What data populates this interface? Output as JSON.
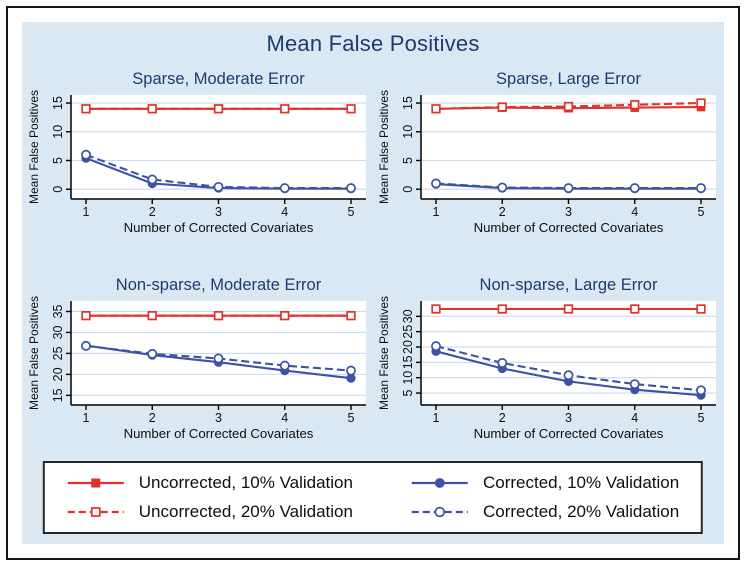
{
  "figure": {
    "title": "Mean False Positives",
    "colors": {
      "panel_bg": "#d9e8f3",
      "plot_bg": "#ffffff",
      "gridline": "#c8dcee",
      "axis": "#000000",
      "title_navy": "#22396e",
      "red": "#e1322b",
      "blue": "#3d52a5",
      "text": "#0f0f0f"
    }
  },
  "legend": {
    "position": "bottom",
    "items": [
      {
        "label": "Uncorrected, 10% Validation",
        "color": "#e1322b",
        "dash": false,
        "marker": "square",
        "filled": true
      },
      {
        "label": "Uncorrected, 20% Validation",
        "color": "#e1322b",
        "dash": true,
        "marker": "square",
        "filled": false
      },
      {
        "label": "Corrected, 10% Validation",
        "color": "#3d52a5",
        "dash": false,
        "marker": "circle",
        "filled": true
      },
      {
        "label": "Corrected, 20% Validation",
        "color": "#3d52a5",
        "dash": true,
        "marker": "circle",
        "filled": false
      }
    ]
  },
  "chart_data": [
    {
      "type": "line",
      "title": "Sparse, Moderate Error",
      "xlabel": "Number of Corrected Covariates",
      "ylabel": "Mean False Positives",
      "x": [
        1,
        2,
        3,
        4,
        5
      ],
      "yticks": [
        0,
        5,
        10,
        15
      ],
      "ylim": [
        -1.7,
        16.4
      ],
      "grid": true,
      "series": [
        {
          "name": "Uncorrected, 10% Validation",
          "values": [
            14.0,
            14.0,
            14.0,
            14.0,
            14.0
          ]
        },
        {
          "name": "Uncorrected, 20% Validation",
          "values": [
            14.0,
            14.0,
            14.0,
            14.0,
            14.0
          ]
        },
        {
          "name": "Corrected, 10% Validation",
          "values": [
            5.4,
            1.0,
            0.2,
            0.1,
            0.1
          ]
        },
        {
          "name": "Corrected, 20% Validation",
          "values": [
            6.0,
            1.7,
            0.4,
            0.2,
            0.2
          ]
        }
      ]
    },
    {
      "type": "line",
      "title": "Sparse, Large Error",
      "xlabel": "Number of Corrected Covariates",
      "ylabel": "Mean False Positives",
      "x": [
        1,
        2,
        3,
        4,
        5
      ],
      "yticks": [
        0,
        5,
        10,
        15
      ],
      "ylim": [
        -1.7,
        16.4
      ],
      "grid": true,
      "series": [
        {
          "name": "Uncorrected, 10% Validation",
          "values": [
            14.0,
            14.2,
            14.1,
            14.2,
            14.3
          ]
        },
        {
          "name": "Uncorrected, 20% Validation",
          "values": [
            14.0,
            14.3,
            14.4,
            14.7,
            15.0
          ]
        },
        {
          "name": "Corrected, 10% Validation",
          "values": [
            0.9,
            0.2,
            0.1,
            0.1,
            0.1
          ]
        },
        {
          "name": "Corrected, 20% Validation",
          "values": [
            1.0,
            0.3,
            0.2,
            0.2,
            0.2
          ]
        }
      ]
    },
    {
      "type": "line",
      "title": "Non-sparse, Moderate Error",
      "xlabel": "Number of Corrected Covariates",
      "ylabel": "Mean False Positives",
      "x": [
        1,
        2,
        3,
        4,
        5
      ],
      "yticks": [
        15,
        20,
        25,
        30,
        35
      ],
      "ylim": [
        12.7,
        37.5
      ],
      "grid": true,
      "series": [
        {
          "name": "Uncorrected, 10% Validation",
          "values": [
            34.0,
            34.0,
            34.0,
            34.0,
            34.0
          ]
        },
        {
          "name": "Uncorrected, 20% Validation",
          "values": [
            34.0,
            34.0,
            34.0,
            34.0,
            34.0
          ]
        },
        {
          "name": "Corrected, 10% Validation",
          "values": [
            26.9,
            24.6,
            22.9,
            20.9,
            19.1
          ]
        },
        {
          "name": "Corrected, 20% Validation",
          "values": [
            26.8,
            24.9,
            23.8,
            22.1,
            20.9
          ]
        }
      ]
    },
    {
      "type": "line",
      "title": "Non-sparse, Large Error",
      "xlabel": "Number of Corrected Covariates",
      "ylabel": "Mean False Positives",
      "x": [
        1,
        2,
        3,
        4,
        5
      ],
      "yticks": [
        5,
        10,
        15,
        20,
        25,
        30
      ],
      "ylim": [
        1.1,
        35.0
      ],
      "grid": true,
      "series": [
        {
          "name": "Uncorrected, 10% Validation",
          "values": [
            32.4,
            32.4,
            32.4,
            32.4,
            32.4
          ]
        },
        {
          "name": "Uncorrected, 20% Validation",
          "values": [
            32.4,
            32.4,
            32.4,
            32.4,
            32.4
          ]
        },
        {
          "name": "Corrected, 10% Validation",
          "values": [
            18.6,
            13.0,
            8.8,
            6.1,
            4.3
          ]
        },
        {
          "name": "Corrected, 20% Validation",
          "values": [
            20.3,
            14.8,
            10.8,
            7.9,
            5.9
          ]
        }
      ]
    }
  ]
}
